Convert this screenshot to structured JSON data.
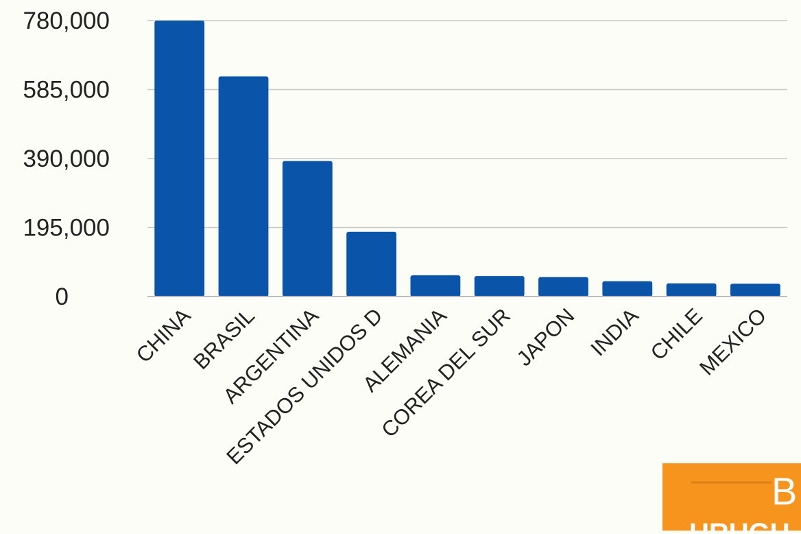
{
  "chart_data": {
    "type": "bar",
    "categories": [
      "CHINA",
      "BRASIL",
      "ARGENTINA",
      "ESTADOS UNIDOS D",
      "ALEMANIA",
      "COREA DEL SUR",
      "JAPON",
      "INDIA",
      "CHILE",
      "MEXICO"
    ],
    "values": [
      780000,
      622000,
      383000,
      183000,
      60000,
      58000,
      55000,
      43000,
      37000,
      36000
    ],
    "yticks": [
      "0",
      "195,000",
      "390,000",
      "585,000",
      "780,000"
    ],
    "ylim": [
      0,
      780000
    ],
    "ytick_values": [
      0,
      195000,
      390000,
      585000,
      780000
    ],
    "grid": true,
    "bar_color": "#0a54a9",
    "title": "",
    "xlabel": "",
    "ylabel": ""
  },
  "badge": {
    "letter": "B",
    "bottom_text": "URUGU",
    "color": "#f7941d"
  }
}
